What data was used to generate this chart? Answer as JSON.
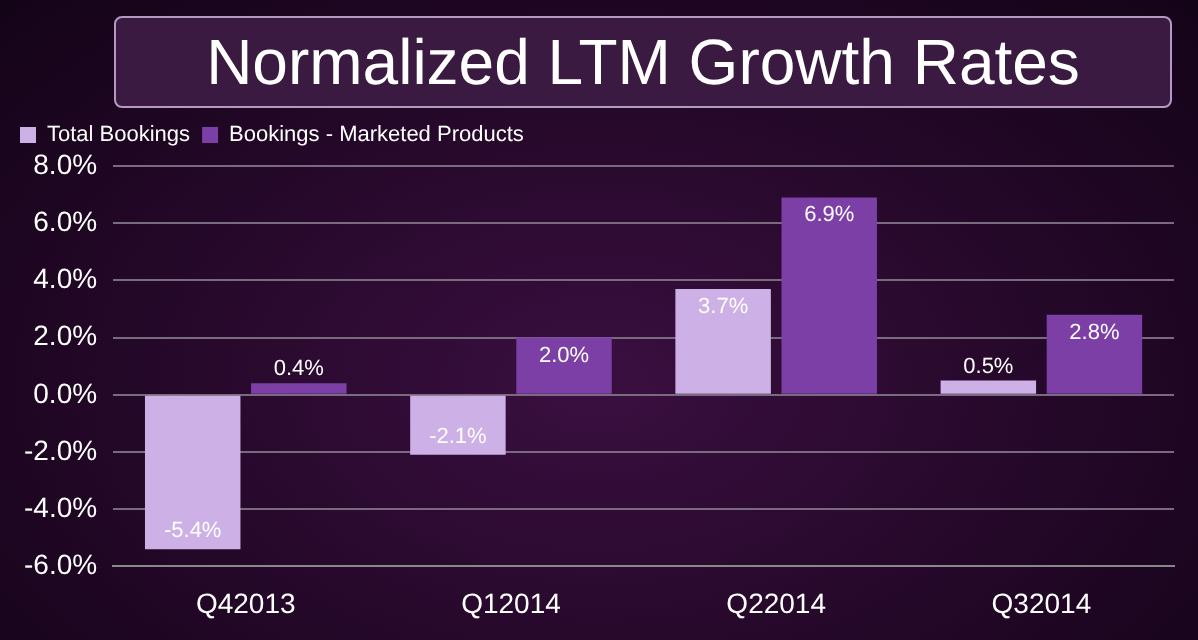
{
  "chart_data": {
    "type": "bar",
    "title": "Normalized LTM Growth Rates",
    "categories": [
      "Q42013",
      "Q12014",
      "Q22014",
      "Q32014"
    ],
    "series": [
      {
        "name": "Total Bookings",
        "color": "#cdb0e6",
        "values": [
          -5.4,
          -2.1,
          3.7,
          0.5
        ],
        "value_labels": [
          "-5.4%",
          "-2.1%",
          "3.7%",
          "0.5%"
        ]
      },
      {
        "name": "Bookings - Marketed Products",
        "color": "#7b3fa6",
        "values": [
          0.4,
          2.0,
          6.9,
          2.8
        ],
        "value_labels": [
          "0.4%",
          "2.0%",
          "6.9%",
          "2.8%"
        ]
      }
    ],
    "ylim": [
      -6,
      8
    ],
    "yticks": [
      {
        "value": -6,
        "label": "-6.0%"
      },
      {
        "value": -4,
        "label": "-4.0%"
      },
      {
        "value": -2,
        "label": "-2.0%"
      },
      {
        "value": 0,
        "label": "0.0%"
      },
      {
        "value": 2,
        "label": "2.0%"
      },
      {
        "value": 4,
        "label": "4.0%"
      },
      {
        "value": 6,
        "label": "6.0%"
      },
      {
        "value": 8,
        "label": "8.0%"
      }
    ],
    "grid": "y",
    "legend": "top left"
  }
}
